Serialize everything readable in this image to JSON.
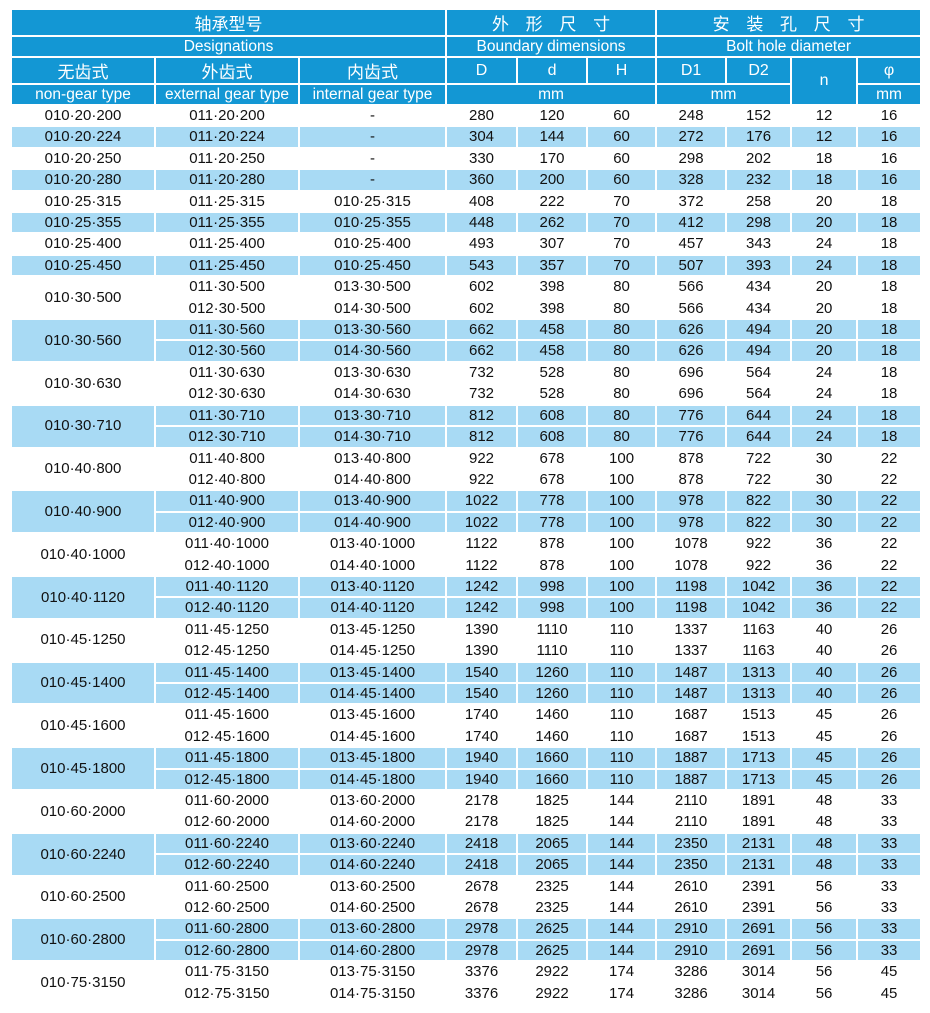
{
  "header": {
    "model_cn": "轴承型号",
    "model_en": "Designations",
    "boundary_cn": "外 形 尺 寸",
    "boundary_en": "Boundary dimensions",
    "bolt_cn": "安 装 孔 尺 寸",
    "bolt_en": "Bolt hole diameter",
    "non_gear_cn": "无齿式",
    "non_gear_en": "non-gear type",
    "external_gear_cn": "外齿式",
    "external_gear_en": "external gear type",
    "internal_gear_cn": "内齿式",
    "internal_gear_en": "internal gear type",
    "col_D": "D",
    "col_d": "d",
    "col_H": "H",
    "col_D1": "D1",
    "col_D2": "D2",
    "col_n": "n",
    "col_phi": "φ",
    "unit_boundary": "mm",
    "unit_bolt": "mm",
    "unit_phi": "mm"
  },
  "colors": {
    "header_blue": "#1397D4",
    "stripe_blue": "#A8DAF4",
    "text": "#111111"
  },
  "table": {
    "column_keys": [
      "external",
      "internal",
      "D",
      "d",
      "H",
      "D1",
      "D2",
      "n",
      "phi"
    ],
    "groups": [
      {
        "name": "010·20·200",
        "shade": "white",
        "rows": [
          [
            "011·20·200",
            "-",
            "280",
            "120",
            "60",
            "248",
            "152",
            "12",
            "16"
          ]
        ]
      },
      {
        "name": "010·20·224",
        "shade": "blue",
        "rows": [
          [
            "011·20·224",
            "-",
            "304",
            "144",
            "60",
            "272",
            "176",
            "12",
            "16"
          ]
        ]
      },
      {
        "name": "010·20·250",
        "shade": "white",
        "rows": [
          [
            "011·20·250",
            "-",
            "330",
            "170",
            "60",
            "298",
            "202",
            "18",
            "16"
          ]
        ]
      },
      {
        "name": "010·20·280",
        "shade": "blue",
        "rows": [
          [
            "011·20·280",
            "-",
            "360",
            "200",
            "60",
            "328",
            "232",
            "18",
            "16"
          ]
        ]
      },
      {
        "name": "010·25·315",
        "shade": "white",
        "rows": [
          [
            "011·25·315",
            "010·25·315",
            "408",
            "222",
            "70",
            "372",
            "258",
            "20",
            "18"
          ]
        ]
      },
      {
        "name": "010·25·355",
        "shade": "blue",
        "rows": [
          [
            "011·25·355",
            "010·25·355",
            "448",
            "262",
            "70",
            "412",
            "298",
            "20",
            "18"
          ]
        ]
      },
      {
        "name": "010·25·400",
        "shade": "white",
        "rows": [
          [
            "011·25·400",
            "010·25·400",
            "493",
            "307",
            "70",
            "457",
            "343",
            "24",
            "18"
          ]
        ]
      },
      {
        "name": "010·25·450",
        "shade": "blue",
        "rows": [
          [
            "011·25·450",
            "010·25·450",
            "543",
            "357",
            "70",
            "507",
            "393",
            "24",
            "18"
          ]
        ]
      },
      {
        "name": "010·30·500",
        "shade": "white",
        "rows": [
          [
            "011·30·500",
            "013·30·500",
            "602",
            "398",
            "80",
            "566",
            "434",
            "20",
            "18"
          ],
          [
            "012·30·500",
            "014·30·500",
            "602",
            "398",
            "80",
            "566",
            "434",
            "20",
            "18"
          ]
        ]
      },
      {
        "name": "010·30·560",
        "shade": "blue",
        "rows": [
          [
            "011·30·560",
            "013·30·560",
            "662",
            "458",
            "80",
            "626",
            "494",
            "20",
            "18"
          ],
          [
            "012·30·560",
            "014·30·560",
            "662",
            "458",
            "80",
            "626",
            "494",
            "20",
            "18"
          ]
        ]
      },
      {
        "name": "010·30·630",
        "shade": "white",
        "rows": [
          [
            "011·30·630",
            "013·30·630",
            "732",
            "528",
            "80",
            "696",
            "564",
            "24",
            "18"
          ],
          [
            "012·30·630",
            "014·30·630",
            "732",
            "528",
            "80",
            "696",
            "564",
            "24",
            "18"
          ]
        ]
      },
      {
        "name": "010·30·710",
        "shade": "blue",
        "rows": [
          [
            "011·30·710",
            "013·30·710",
            "812",
            "608",
            "80",
            "776",
            "644",
            "24",
            "18"
          ],
          [
            "012·30·710",
            "014·30·710",
            "812",
            "608",
            "80",
            "776",
            "644",
            "24",
            "18"
          ]
        ]
      },
      {
        "name": "010·40·800",
        "shade": "white",
        "rows": [
          [
            "011·40·800",
            "013·40·800",
            "922",
            "678",
            "100",
            "878",
            "722",
            "30",
            "22"
          ],
          [
            "012·40·800",
            "014·40·800",
            "922",
            "678",
            "100",
            "878",
            "722",
            "30",
            "22"
          ]
        ]
      },
      {
        "name": "010·40·900",
        "shade": "blue",
        "rows": [
          [
            "011·40·900",
            "013·40·900",
            "1022",
            "778",
            "100",
            "978",
            "822",
            "30",
            "22"
          ],
          [
            "012·40·900",
            "014·40·900",
            "1022",
            "778",
            "100",
            "978",
            "822",
            "30",
            "22"
          ]
        ]
      },
      {
        "name": "010·40·1000",
        "shade": "white",
        "rows": [
          [
            "011·40·1000",
            "013·40·1000",
            "1122",
            "878",
            "100",
            "1078",
            "922",
            "36",
            "22"
          ],
          [
            "012·40·1000",
            "014·40·1000",
            "1122",
            "878",
            "100",
            "1078",
            "922",
            "36",
            "22"
          ]
        ]
      },
      {
        "name": "010·40·1120",
        "shade": "blue",
        "rows": [
          [
            "011·40·1120",
            "013·40·1120",
            "1242",
            "998",
            "100",
            "1198",
            "1042",
            "36",
            "22"
          ],
          [
            "012·40·1120",
            "014·40·1120",
            "1242",
            "998",
            "100",
            "1198",
            "1042",
            "36",
            "22"
          ]
        ]
      },
      {
        "name": "010·45·1250",
        "shade": "white",
        "rows": [
          [
            "011·45·1250",
            "013·45·1250",
            "1390",
            "1110",
            "110",
            "1337",
            "1163",
            "40",
            "26"
          ],
          [
            "012·45·1250",
            "014·45·1250",
            "1390",
            "1110",
            "110",
            "1337",
            "1163",
            "40",
            "26"
          ]
        ]
      },
      {
        "name": "010·45·1400",
        "shade": "blue",
        "rows": [
          [
            "011·45·1400",
            "013·45·1400",
            "1540",
            "1260",
            "110",
            "1487",
            "1313",
            "40",
            "26"
          ],
          [
            "012·45·1400",
            "014·45·1400",
            "1540",
            "1260",
            "110",
            "1487",
            "1313",
            "40",
            "26"
          ]
        ]
      },
      {
        "name": "010·45·1600",
        "shade": "white",
        "rows": [
          [
            "011·45·1600",
            "013·45·1600",
            "1740",
            "1460",
            "110",
            "1687",
            "1513",
            "45",
            "26"
          ],
          [
            "012·45·1600",
            "014·45·1600",
            "1740",
            "1460",
            "110",
            "1687",
            "1513",
            "45",
            "26"
          ]
        ]
      },
      {
        "name": "010·45·1800",
        "shade": "blue",
        "rows": [
          [
            "011·45·1800",
            "013·45·1800",
            "1940",
            "1660",
            "110",
            "1887",
            "1713",
            "45",
            "26"
          ],
          [
            "012·45·1800",
            "014·45·1800",
            "1940",
            "1660",
            "110",
            "1887",
            "1713",
            "45",
            "26"
          ]
        ]
      },
      {
        "name": "010·60·2000",
        "shade": "white",
        "rows": [
          [
            "011·60·2000",
            "013·60·2000",
            "2178",
            "1825",
            "144",
            "2110",
            "1891",
            "48",
            "33"
          ],
          [
            "012·60·2000",
            "014·60·2000",
            "2178",
            "1825",
            "144",
            "2110",
            "1891",
            "48",
            "33"
          ]
        ]
      },
      {
        "name": "010·60·2240",
        "shade": "blue",
        "rows": [
          [
            "011·60·2240",
            "013·60·2240",
            "2418",
            "2065",
            "144",
            "2350",
            "2131",
            "48",
            "33"
          ],
          [
            "012·60·2240",
            "014·60·2240",
            "2418",
            "2065",
            "144",
            "2350",
            "2131",
            "48",
            "33"
          ]
        ]
      },
      {
        "name": "010·60·2500",
        "shade": "white",
        "rows": [
          [
            "011·60·2500",
            "013·60·2500",
            "2678",
            "2325",
            "144",
            "2610",
            "2391",
            "56",
            "33"
          ],
          [
            "012·60·2500",
            "014·60·2500",
            "2678",
            "2325",
            "144",
            "2610",
            "2391",
            "56",
            "33"
          ]
        ]
      },
      {
        "name": "010·60·2800",
        "shade": "blue",
        "rows": [
          [
            "011·60·2800",
            "013·60·2800",
            "2978",
            "2625",
            "144",
            "2910",
            "2691",
            "56",
            "33"
          ],
          [
            "012·60·2800",
            "014·60·2800",
            "2978",
            "2625",
            "144",
            "2910",
            "2691",
            "56",
            "33"
          ]
        ]
      },
      {
        "name": "010·75·3150",
        "shade": "white",
        "rows": [
          [
            "011·75·3150",
            "013·75·3150",
            "3376",
            "2922",
            "174",
            "3286",
            "3014",
            "56",
            "45"
          ],
          [
            "012·75·3150",
            "014·75·3150",
            "3376",
            "2922",
            "174",
            "3286",
            "3014",
            "56",
            "45"
          ]
        ]
      }
    ]
  }
}
